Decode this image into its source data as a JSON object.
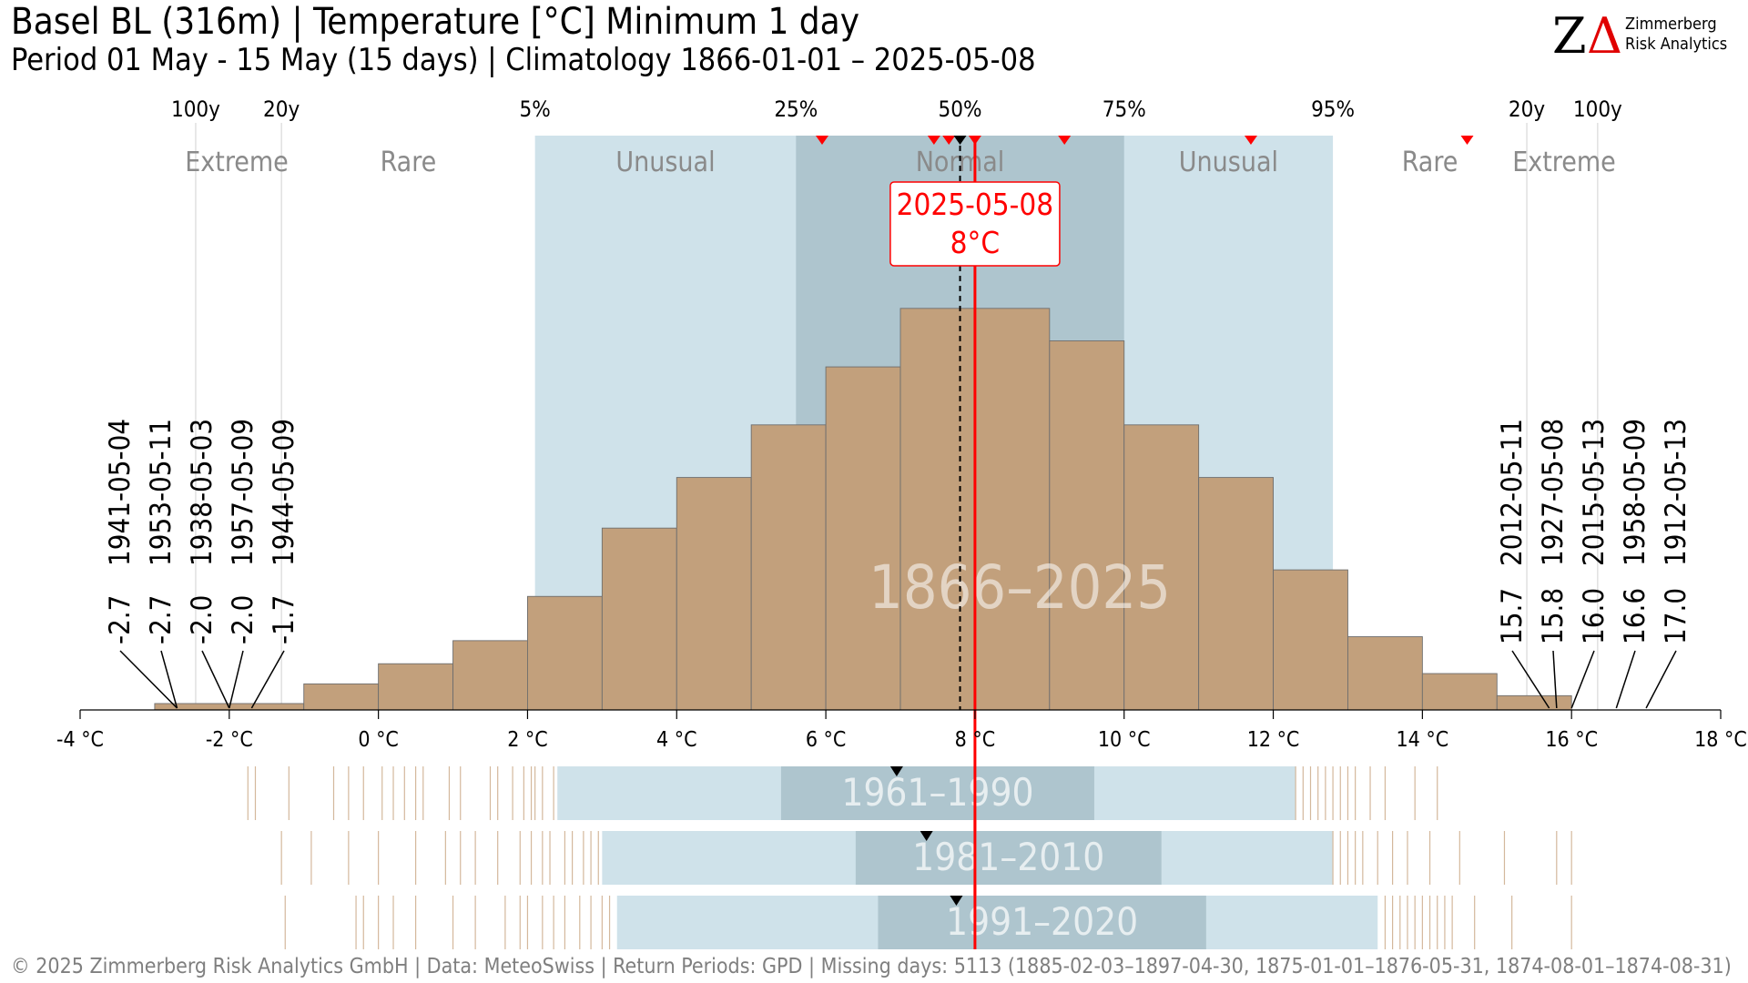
{
  "header": {
    "title": "Basel  BL (316m) | Temperature [°C] Minimum 1 day",
    "subtitle": "Period 01 May - 15 May (15 days) | Climatology 1866-01-01 – 2025-05-08"
  },
  "logo": {
    "mark": "ZΔ",
    "name_line1": "Zimmerberg",
    "name_line2": "Risk Analytics"
  },
  "footer": "©  2025 Zimmerberg Risk Analytics GmbH | Data: MeteoSwiss | Return Periods: GPD | Missing days: 5113 (1885-02-03–1897-04-30, 1875-01-01–1876-05-31, 1874-08-01–1874-08-31)",
  "colors": {
    "histogram": "#c2a07c",
    "band_outer": "#cfe2ea",
    "band_inner": "#aec5ce",
    "current": "#ff0000",
    "median_marker": "#000000",
    "zone_label": "#8a8a8a",
    "period_label": "#ffffff"
  },
  "chart_data": {
    "type": "histogram",
    "xlim": [
      -4,
      18
    ],
    "x_ticks": [
      -4,
      -2,
      0,
      2,
      4,
      6,
      8,
      10,
      12,
      14,
      16,
      18
    ],
    "x_tick_labels": [
      "-4 °C",
      "-2 °C",
      "0 °C",
      "2 °C",
      "4 °C",
      "6 °C",
      "8 °C",
      "10 °C",
      "12 °C",
      "14 °C",
      "16 °C",
      "18 °C"
    ],
    "bins": [
      {
        "from": -3.0,
        "to": -1.0,
        "height": 0.013
      },
      {
        "from": -1.0,
        "to": 0.0,
        "height": 0.053
      },
      {
        "from": 0.0,
        "to": 1.0,
        "height": 0.094
      },
      {
        "from": 1.0,
        "to": 2.0,
        "height": 0.141
      },
      {
        "from": 2.0,
        "to": 3.0,
        "height": 0.231
      },
      {
        "from": 3.0,
        "to": 4.0,
        "height": 0.37
      },
      {
        "from": 4.0,
        "to": 5.0,
        "height": 0.473
      },
      {
        "from": 5.0,
        "to": 6.0,
        "height": 0.58
      },
      {
        "from": 6.0,
        "to": 7.0,
        "height": 0.698
      },
      {
        "from": 7.0,
        "to": 8.0,
        "height": 0.817
      },
      {
        "from": 8.0,
        "to": 9.0,
        "height": 0.817
      },
      {
        "from": 9.0,
        "to": 10.0,
        "height": 0.751
      },
      {
        "from": 10.0,
        "to": 11.0,
        "height": 0.58
      },
      {
        "from": 11.0,
        "to": 12.0,
        "height": 0.473
      },
      {
        "from": 12.0,
        "to": 13.0,
        "height": 0.285
      },
      {
        "from": 13.0,
        "to": 14.0,
        "height": 0.149
      },
      {
        "from": 14.0,
        "to": 15.0,
        "height": 0.074
      },
      {
        "from": 15.0,
        "to": 16.0,
        "height": 0.029
      }
    ],
    "percentiles": [
      {
        "label": "5%",
        "value": 2.1
      },
      {
        "label": "25%",
        "value": 5.6
      },
      {
        "label": "50%",
        "value": 7.8
      },
      {
        "label": "75%",
        "value": 10.0
      },
      {
        "label": "95%",
        "value": 12.8
      }
    ],
    "return_periods": [
      {
        "label": "100y",
        "value": -2.45
      },
      {
        "label": "20y",
        "value": -1.3
      },
      {
        "label": "20y",
        "value": 15.4
      },
      {
        "label": "100y",
        "value": 16.35
      }
    ],
    "zones": [
      {
        "label": "Extreme",
        "value": -1.9
      },
      {
        "label": "Rare",
        "value": 0.4
      },
      {
        "label": "Unusual",
        "value": 3.85
      },
      {
        "label": "Normal",
        "value": 7.8
      },
      {
        "label": "Unusual",
        "value": 11.4
      },
      {
        "label": "Rare",
        "value": 14.1
      },
      {
        "label": "Extreme",
        "value": 15.9
      }
    ],
    "recent_markers": [
      5.95,
      7.45,
      7.65,
      8.0,
      9.2,
      11.7,
      14.6
    ],
    "median_marker": 7.8,
    "current": {
      "date": "2025-05-08",
      "value": 8.0,
      "label": "8°C"
    },
    "period_label": "1866–2025",
    "extremes_low": [
      {
        "date": "1941-05-04",
        "value": -2.7
      },
      {
        "date": "1953-05-11",
        "value": -2.7
      },
      {
        "date": "1938-05-03",
        "value": -2.0
      },
      {
        "date": "1957-05-09",
        "value": -2.0
      },
      {
        "date": "1944-05-09",
        "value": -1.7
      }
    ],
    "extremes_high": [
      {
        "date": "2012-05-11",
        "value": 15.7
      },
      {
        "date": "1927-05-08",
        "value": 15.8
      },
      {
        "date": "2015-05-13",
        "value": 16.0
      },
      {
        "date": "1958-05-09",
        "value": 16.6
      },
      {
        "date": "1912-05-13",
        "value": 17.0
      }
    ],
    "climatologies": [
      {
        "label": "1961–1990",
        "p5": 2.4,
        "p25": 5.4,
        "p75": 9.6,
        "p95": 12.3,
        "median": 6.95,
        "ticks_low": [
          -1.75,
          -1.65,
          -1.2,
          -0.6,
          -0.4,
          -0.2,
          0.05,
          0.2,
          0.35,
          0.5,
          0.6,
          0.95,
          1.1,
          1.5,
          1.6,
          1.8,
          1.95,
          2.05,
          2.1,
          2.2,
          2.35
        ],
        "ticks_high": [
          12.3,
          12.4,
          12.5,
          12.6,
          12.7,
          12.8,
          12.9,
          13.0,
          13.1,
          13.3,
          13.5,
          13.9,
          14.2
        ]
      },
      {
        "label": "1981–2010",
        "p5": 3.0,
        "p25": 6.4,
        "p75": 10.5,
        "p95": 12.8,
        "median": 7.35,
        "ticks_low": [
          -1.3,
          -0.9,
          -0.4,
          0.0,
          0.5,
          0.9,
          1.1,
          1.3,
          1.6,
          1.9,
          2.05,
          2.2,
          2.3,
          2.5,
          2.6,
          2.75,
          2.85,
          2.95
        ],
        "ticks_high": [
          12.8,
          12.9,
          13.0,
          13.1,
          13.2,
          13.4,
          13.6,
          13.8,
          14.1,
          14.5,
          15.1,
          15.8,
          16.0
        ]
      },
      {
        "label": "1991–2020",
        "p5": 3.2,
        "p25": 6.7,
        "p75": 11.1,
        "p95": 13.4,
        "median": 7.75,
        "ticks_low": [
          -1.25,
          -0.3,
          -0.2,
          0.0,
          0.2,
          0.5,
          1.0,
          1.3,
          1.7,
          1.9,
          2.0,
          2.2,
          2.35,
          2.5,
          2.7,
          2.85,
          3.0,
          3.1
        ],
        "ticks_high": [
          13.5,
          13.6,
          13.7,
          13.8,
          13.9,
          14.0,
          14.1,
          14.2,
          14.3,
          14.4,
          14.7,
          15.2,
          16.0
        ]
      }
    ]
  }
}
